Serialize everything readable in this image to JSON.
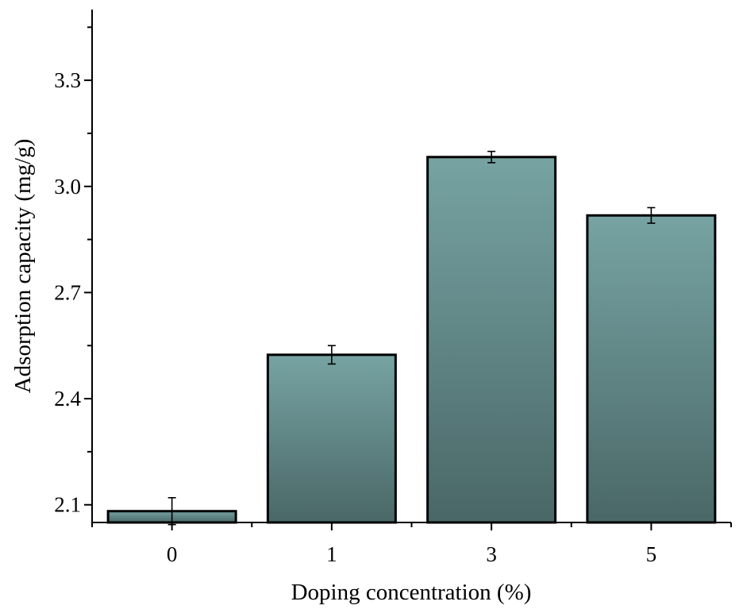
{
  "chart_data": {
    "type": "bar",
    "title": "",
    "xlabel": "Doping concentration (%)",
    "ylabel": "Adsorption capacity (mg/g)",
    "categories": [
      "0",
      "1",
      "3",
      "5"
    ],
    "values": [
      2.082,
      2.524,
      3.083,
      2.918
    ],
    "errors": [
      0.038,
      0.026,
      0.016,
      0.022
    ],
    "ylim": [
      2.05,
      3.5
    ],
    "yticks": [
      2.1,
      2.4,
      2.7,
      3.0,
      3.3
    ],
    "ytick_labels": [
      "2.1",
      "2.4",
      "2.7",
      "3.0",
      "3.3"
    ],
    "minor_yticks": [
      2.25,
      2.55,
      2.85,
      3.15,
      3.45
    ],
    "grid": false,
    "bar_color_top": "#77a3a3",
    "bar_color_bottom": "#4a6767"
  }
}
